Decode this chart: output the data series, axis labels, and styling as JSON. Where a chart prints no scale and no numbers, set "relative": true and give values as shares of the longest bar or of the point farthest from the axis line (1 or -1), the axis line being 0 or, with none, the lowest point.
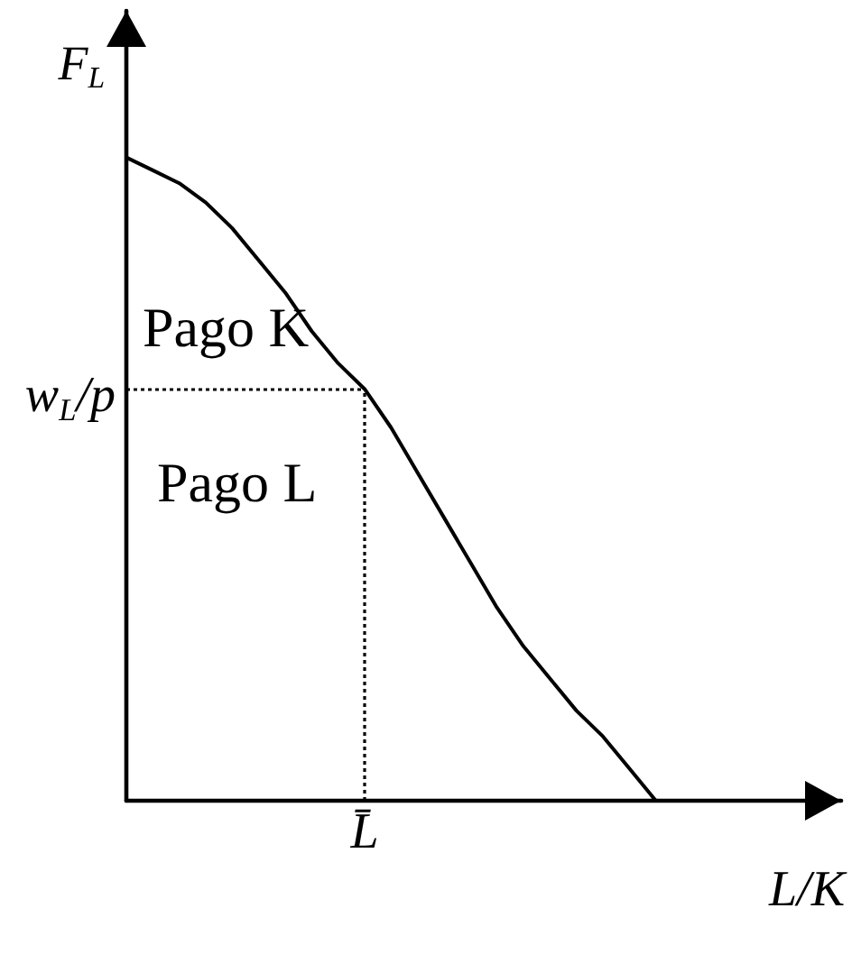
{
  "chart_data": {
    "type": "line",
    "relative": true,
    "ylabel": "F$_{L}$",
    "xlabel": "L/K",
    "categories": [
      null,
      null,
      null,
      null,
      null,
      null,
      null,
      null,
      null,
      null,
      null,
      null,
      null,
      null,
      null,
      null,
      null,
      null,
      null,
      null,
      null,
      null,
      null,
      null,
      null,
      null,
      null,
      null
    ],
    "series": [
      {
        "color": "#000000",
        "values": [
          1,
          0.98,
          0.96,
          0.93,
          0.89,
          0.84,
          0.79,
          0.73,
          0.68,
          0.64,
          0.58,
          0.51,
          0.44,
          0.37,
          0.3,
          0.24,
          0.19,
          0.14,
          0.1,
          0.05,
          0,
          null,
          null,
          null,
          null,
          null,
          null,
          null
        ]
      }
    ],
    "ref_lines": [
      {
        "axis": "y",
        "value": 0.64,
        "label": "w$_{L}$/p",
        "color": "#000000",
        "line_style": "dotted"
      }
    ],
    "annotations": [
      "Pago K",
      "Pago L",
      "L̄"
    ],
    "marker": "none"
  }
}
